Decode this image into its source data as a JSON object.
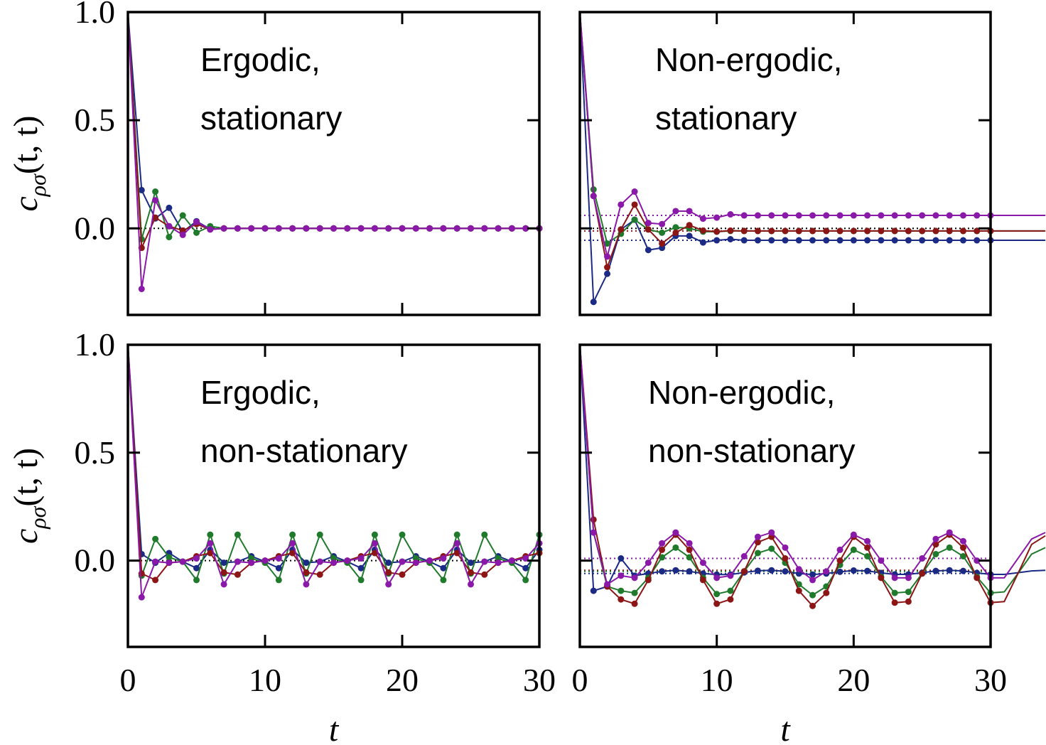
{
  "chart_data": [
    {
      "type": "line",
      "annotation": [
        "Ergodic,",
        "stationary"
      ],
      "ylabel_base": "c",
      "ylabel_sub": "ρσ",
      "ylabel_args": "(t, t)",
      "xlim": [
        0,
        30
      ],
      "ylim": [
        -0.4,
        1.0
      ],
      "xticks": [
        0,
        10,
        20,
        30
      ],
      "yticks": [
        {
          "value": 0,
          "label": "0.0"
        },
        {
          "value": 0.5,
          "label": "0.5"
        },
        {
          "value": 1,
          "label": "1.0"
        }
      ],
      "show_xtick_labels": false,
      "show_ytick_labels": true,
      "hlines": [
        {
          "value": 0,
          "color": "#000000"
        }
      ],
      "x": [
        0,
        1,
        2,
        3,
        4,
        5,
        6,
        7,
        8,
        9,
        10,
        11,
        12,
        13,
        14,
        15,
        16,
        17,
        18,
        19,
        20,
        21,
        22,
        23,
        24,
        25,
        26,
        27,
        28,
        29,
        30
      ],
      "series": [
        {
          "color": "#1b2a85",
          "values": [
            1,
            0.177,
            0.046,
            0.095,
            -0.016,
            0.033,
            -0.003,
            0,
            0,
            0,
            0,
            0,
            0,
            0,
            0,
            0,
            0,
            0,
            0,
            0,
            0,
            0,
            0,
            0,
            0,
            0,
            0,
            0,
            0,
            0,
            0
          ]
        },
        {
          "color": "#1f7a2c",
          "values": [
            1,
            -0.05,
            0.17,
            -0.04,
            0.06,
            -0.02,
            0.01,
            0,
            0,
            0,
            0,
            0,
            0,
            0,
            0,
            0,
            0,
            0,
            0,
            0,
            0,
            0,
            0,
            0,
            0,
            0,
            0,
            0,
            0,
            0,
            0
          ]
        },
        {
          "color": "#8c1616",
          "values": [
            1,
            -0.09,
            0.05,
            0.01,
            -0.01,
            0.02,
            -0.005,
            0,
            0,
            0,
            0,
            0,
            0,
            0,
            0,
            0,
            0,
            0,
            0,
            0,
            0,
            0,
            0,
            0,
            0,
            0,
            0,
            0,
            0,
            0,
            0
          ]
        },
        {
          "color": "#8a18a8",
          "values": [
            1,
            -0.28,
            0.13,
            0.01,
            -0.03,
            0.03,
            -0.005,
            0,
            0,
            0,
            0,
            0,
            0,
            0,
            0,
            0,
            0,
            0,
            0,
            0,
            0,
            0,
            0,
            0,
            0,
            0,
            0,
            0,
            0,
            0,
            0
          ]
        }
      ]
    },
    {
      "type": "line",
      "annotation": [
        "Non-ergodic,",
        "stationary"
      ],
      "xlim": [
        0,
        30
      ],
      "ylim": [
        -0.4,
        1.0
      ],
      "xticks": [
        0,
        10,
        20,
        30
      ],
      "yticks": [
        0,
        0.5,
        1
      ],
      "show_xtick_labels": false,
      "show_ytick_labels": false,
      "hlines": [
        {
          "value": 0,
          "color": "#000000"
        },
        {
          "value": 0.06,
          "color": "#8a18a8"
        },
        {
          "value": -0.012,
          "color": "#8c1616"
        },
        {
          "value": -0.055,
          "color": "#1b2a85"
        }
      ],
      "x": [
        0,
        1,
        2,
        3,
        4,
        5,
        6,
        7,
        8,
        9,
        10,
        11,
        12,
        13,
        14,
        15,
        16,
        17,
        18,
        19,
        20,
        21,
        22,
        23,
        24,
        25,
        26,
        27,
        28,
        29,
        30,
        31,
        32,
        33,
        34
      ],
      "series": [
        {
          "color": "#1b2a85",
          "values": [
            1,
            -0.34,
            -0.21,
            -0.005,
            0.04,
            -0.1,
            -0.09,
            -0.035,
            -0.035,
            -0.065,
            -0.055,
            -0.05,
            -0.055,
            -0.055,
            -0.055,
            -0.055,
            -0.055,
            -0.055,
            -0.055,
            -0.055,
            -0.055,
            -0.055,
            -0.055,
            -0.055,
            -0.055,
            -0.055,
            -0.055,
            -0.055,
            -0.055,
            -0.055,
            -0.055,
            -0.055,
            -0.055,
            -0.055,
            -0.055
          ]
        },
        {
          "color": "#1f7a2c",
          "values": [
            1,
            0.18,
            -0.07,
            -0.025,
            0.04,
            -0.005,
            -0.02,
            0.005,
            0,
            -0.015,
            -0.015,
            -0.012,
            -0.012,
            -0.012,
            -0.012,
            -0.012,
            -0.012,
            -0.012,
            -0.012,
            -0.012,
            -0.012,
            -0.012,
            -0.012,
            -0.012,
            -0.012,
            -0.012,
            -0.012,
            -0.012,
            -0.012,
            -0.012,
            -0.012,
            -0.012,
            -0.012,
            -0.012,
            -0.012
          ]
        },
        {
          "color": "#8c1616",
          "values": [
            1,
            0.15,
            -0.18,
            -0.005,
            0.11,
            -0.005,
            -0.07,
            -0.02,
            0.015,
            -0.01,
            -0.015,
            -0.01,
            -0.012,
            -0.012,
            -0.012,
            -0.012,
            -0.012,
            -0.012,
            -0.012,
            -0.012,
            -0.012,
            -0.012,
            -0.012,
            -0.012,
            -0.012,
            -0.012,
            -0.012,
            -0.012,
            -0.012,
            -0.012,
            -0.012,
            -0.012,
            -0.012,
            -0.012,
            -0.012
          ]
        },
        {
          "color": "#8a18a8",
          "values": [
            1,
            0.15,
            -0.13,
            0.11,
            0.17,
            0.025,
            0.02,
            0.08,
            0.08,
            0.045,
            0.05,
            0.065,
            0.06,
            0.06,
            0.06,
            0.06,
            0.06,
            0.06,
            0.06,
            0.06,
            0.06,
            0.06,
            0.06,
            0.06,
            0.06,
            0.06,
            0.06,
            0.06,
            0.06,
            0.06,
            0.06,
            0.06,
            0.06,
            0.06,
            0.06
          ]
        }
      ]
    },
    {
      "type": "line",
      "annotation": [
        "Ergodic,",
        "non-stationary"
      ],
      "ylabel_base": "c",
      "ylabel_sub": "ρσ",
      "ylabel_args": "(t, t)",
      "xlabel": "t",
      "xlim": [
        0,
        30
      ],
      "ylim": [
        -0.4,
        1.0
      ],
      "xticks": [
        0,
        10,
        20,
        30
      ],
      "yticks": [
        {
          "value": 0,
          "label": "0.0"
        },
        {
          "value": 0.5,
          "label": "0.5"
        },
        {
          "value": 1,
          "label": "1.0"
        }
      ],
      "show_xtick_labels": true,
      "show_ytick_labels": true,
      "hlines": [
        {
          "value": 0,
          "color": "#000000"
        }
      ],
      "x": [
        0,
        1,
        2,
        3,
        4,
        5,
        6,
        7,
        8,
        9,
        10,
        11,
        12,
        13,
        14,
        15,
        16,
        17,
        18,
        19,
        20,
        21,
        22,
        23,
        24,
        25,
        26,
        27,
        28,
        29,
        30
      ],
      "series": [
        {
          "color": "#1b2a85",
          "values": [
            1,
            0.03,
            -0.01,
            0.035,
            -0.005,
            -0.035,
            0.05,
            -0.01,
            -0.005,
            0.02,
            -0.005,
            -0.035,
            0.05,
            -0.01,
            -0.005,
            0.02,
            -0.005,
            -0.035,
            0.05,
            -0.01,
            -0.005,
            0.02,
            -0.005,
            -0.035,
            0.05,
            -0.01,
            -0.005,
            0.02,
            -0.005,
            -0.035,
            0.05
          ]
        },
        {
          "color": "#1f7a2c",
          "values": [
            1,
            -0.07,
            0.1,
            0.015,
            -0.005,
            -0.09,
            0.12,
            -0.06,
            0.12,
            0.01,
            -0.01,
            -0.09,
            0.12,
            -0.06,
            0.12,
            0.01,
            -0.01,
            -0.09,
            0.12,
            -0.06,
            0.12,
            0.01,
            -0.01,
            -0.09,
            0.12,
            -0.06,
            0.12,
            0.01,
            -0.01,
            -0.09,
            0.12
          ]
        },
        {
          "color": "#8c1616",
          "values": [
            1,
            -0.06,
            -0.09,
            -0.01,
            -0.005,
            0.02,
            0.035,
            -0.055,
            -0.065,
            -0.01,
            0,
            0.02,
            0.035,
            -0.055,
            -0.065,
            -0.01,
            0,
            0.02,
            0.035,
            -0.055,
            -0.065,
            -0.01,
            0,
            0.02,
            0.035,
            -0.055,
            -0.065,
            -0.01,
            0,
            0.02,
            0.035
          ]
        },
        {
          "color": "#8a18a8",
          "values": [
            1,
            -0.17,
            -0.005,
            -0.01,
            -0.005,
            0.01,
            0.08,
            -0.11,
            -0.005,
            -0.01,
            0,
            0.01,
            0.08,
            -0.11,
            -0.005,
            -0.01,
            0,
            0.01,
            0.08,
            -0.11,
            -0.005,
            -0.01,
            0,
            0.01,
            0.08,
            -0.11,
            -0.005,
            -0.01,
            0,
            0.01,
            0.08
          ]
        }
      ]
    },
    {
      "type": "line",
      "annotation": [
        "Non-ergodic,",
        "non-stationary"
      ],
      "xlabel": "t",
      "xlim": [
        0,
        30
      ],
      "ylim": [
        -0.4,
        1.0
      ],
      "xticks": [
        0,
        10,
        20,
        30
      ],
      "yticks": [
        0,
        0.5,
        1
      ],
      "show_xtick_labels": true,
      "show_ytick_labels": false,
      "hlines": [
        {
          "value": 0.01,
          "color": "#8a18a8"
        },
        {
          "value": -0.045,
          "color": "#8c1616"
        },
        {
          "value": -0.05,
          "color": "#1f7a2c"
        },
        {
          "value": -0.06,
          "color": "#1b2a85"
        }
      ],
      "x": [
        0,
        1,
        2,
        3,
        4,
        5,
        6,
        7,
        8,
        9,
        10,
        11,
        12,
        13,
        14,
        15,
        16,
        17,
        18,
        19,
        20,
        21,
        22,
        23,
        24,
        25,
        26,
        27,
        28,
        29,
        30,
        31,
        32,
        33,
        34
      ],
      "series": [
        {
          "color": "#1b2a85",
          "values": [
            1,
            -0.14,
            -0.12,
            0.01,
            -0.07,
            -0.06,
            -0.05,
            -0.045,
            -0.05,
            -0.06,
            -0.065,
            -0.065,
            -0.055,
            -0.047,
            -0.045,
            -0.05,
            -0.06,
            -0.065,
            -0.06,
            -0.052,
            -0.046,
            -0.048,
            -0.057,
            -0.064,
            -0.064,
            -0.056,
            -0.048,
            -0.045,
            -0.048,
            -0.057,
            -0.064,
            -0.064,
            -0.056,
            -0.048,
            -0.045
          ]
        },
        {
          "color": "#1f7a2c",
          "values": [
            1,
            0.13,
            -0.12,
            -0.14,
            -0.15,
            -0.08,
            0.015,
            0.06,
            0.015,
            -0.08,
            -0.155,
            -0.14,
            -0.05,
            0.035,
            0.055,
            -0.01,
            -0.11,
            -0.16,
            -0.12,
            -0.02,
            0.05,
            0.02,
            -0.075,
            -0.15,
            -0.145,
            -0.06,
            0.03,
            0.06,
            0.02,
            -0.075,
            -0.15,
            -0.145,
            -0.06,
            0.03,
            0.06
          ]
        },
        {
          "color": "#8c1616",
          "values": [
            1,
            0.19,
            -0.12,
            -0.18,
            -0.2,
            -0.09,
            0.05,
            0.12,
            0.05,
            -0.09,
            -0.2,
            -0.18,
            -0.05,
            0.085,
            0.11,
            0.01,
            -0.14,
            -0.21,
            -0.15,
            0,
            0.11,
            0.06,
            -0.08,
            -0.195,
            -0.19,
            -0.06,
            0.075,
            0.12,
            0.06,
            -0.08,
            -0.195,
            -0.19,
            -0.06,
            0.075,
            0.115
          ]
        },
        {
          "color": "#8a18a8",
          "values": [
            1,
            0.13,
            -0.11,
            -0.07,
            -0.08,
            -0.01,
            0.08,
            0.13,
            0.08,
            -0.01,
            -0.08,
            -0.07,
            0.02,
            0.11,
            0.13,
            0.06,
            -0.04,
            -0.09,
            -0.05,
            0.05,
            0.12,
            0.09,
            0,
            -0.08,
            -0.08,
            0.01,
            0.1,
            0.13,
            0.09,
            0,
            -0.08,
            -0.08,
            0.01,
            0.1,
            0.13
          ]
        }
      ]
    }
  ]
}
